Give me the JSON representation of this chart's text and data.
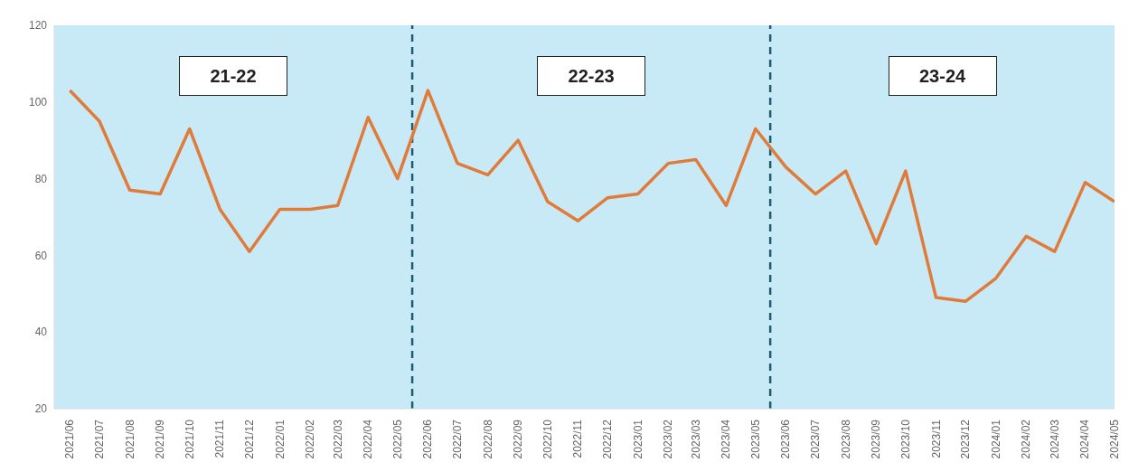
{
  "chart_data": {
    "type": "line",
    "x": [
      "2021-06",
      "2021-07",
      "2021-08",
      "2021-09",
      "2021-10",
      "2021-11",
      "2021-12",
      "2022-01",
      "2022-02",
      "2022-03",
      "2022-04",
      "2022-05",
      "2022-06",
      "2022-07",
      "2022-08",
      "2022-09",
      "2022-10",
      "2022-11",
      "2022-12",
      "2023-01",
      "2023-02",
      "2023-03",
      "2023-04",
      "2023-05",
      "2023-06",
      "2023-07",
      "2023-08",
      "2023-09",
      "2023-10",
      "2023-11",
      "2023-12",
      "2024-01",
      "2024-02",
      "2024-03",
      "2024-04",
      "2024-05"
    ],
    "series": [
      {
        "color": "#e07b39",
        "values": [
          103,
          95,
          77,
          76,
          93,
          72,
          61,
          72,
          72,
          73,
          96,
          80,
          103,
          84,
          81,
          90,
          74,
          69,
          75,
          76,
          84,
          85,
          73,
          93,
          83,
          76,
          82,
          63,
          82,
          49,
          48,
          54,
          65,
          61,
          79,
          74
        ]
      }
    ],
    "xlim": [
      "2021-05-16",
      "2024-05-01"
    ],
    "xticks": [
      {
        "value": "2021-06",
        "label": "2021/06"
      },
      {
        "value": "2021-07",
        "label": "2021/07"
      },
      {
        "value": "2021-08",
        "label": "2021/08"
      },
      {
        "value": "2021-09",
        "label": "2021/09"
      },
      {
        "value": "2021-10",
        "label": "2021/10"
      },
      {
        "value": "2021-11",
        "label": "2021/11"
      },
      {
        "value": "2021-12",
        "label": "2021/12"
      },
      {
        "value": "2022-01",
        "label": "2022/01"
      },
      {
        "value": "2022-02",
        "label": "2022/02"
      },
      {
        "value": "2022-03",
        "label": "2022/03"
      },
      {
        "value": "2022-04",
        "label": "2022/04"
      },
      {
        "value": "2022-05",
        "label": "2022/05"
      },
      {
        "value": "2022-06",
        "label": "2022/06"
      },
      {
        "value": "2022-07",
        "label": "2022/07"
      },
      {
        "value": "2022-08",
        "label": "2022/08"
      },
      {
        "value": "2022-09",
        "label": "2022/09"
      },
      {
        "value": "2022-10",
        "label": "2022/10"
      },
      {
        "value": "2022-11",
        "label": "2022/11"
      },
      {
        "value": "2022-12",
        "label": "2022/12"
      },
      {
        "value": "2023-01",
        "label": "2023/01"
      },
      {
        "value": "2023-02",
        "label": "2023/02"
      },
      {
        "value": "2023-03",
        "label": "2023/03"
      },
      {
        "value": "2023-04",
        "label": "2023/04"
      },
      {
        "value": "2023-05",
        "label": "2023/05"
      },
      {
        "value": "2023-06",
        "label": "2023/06"
      },
      {
        "value": "2023-07",
        "label": "2023/07"
      },
      {
        "value": "2023-08",
        "label": "2023/08"
      },
      {
        "value": "2023-09",
        "label": "2023/09"
      },
      {
        "value": "2023-10",
        "label": "2023/10"
      },
      {
        "value": "2023-11",
        "label": "2023/11"
      },
      {
        "value": "2023-12",
        "label": "2023/12"
      },
      {
        "value": "2024-01",
        "label": "2024/01"
      },
      {
        "value": "2024-02",
        "label": "2024/02"
      },
      {
        "value": "2024-03",
        "label": "2024/03"
      },
      {
        "value": "2024-04",
        "label": "2024/04"
      },
      {
        "value": "2024-05",
        "label": "2024/05"
      }
    ],
    "ylim": [
      20,
      120
    ],
    "yticks": [
      20,
      40,
      60,
      80,
      100,
      120
    ],
    "ref_lines": [
      {
        "axis": "x",
        "value": "2022-05-16",
        "color": "#1f5a73",
        "line_style": "dashed"
      },
      {
        "axis": "x",
        "value": "2023-05-16",
        "color": "#1f5a73",
        "line_style": "dashed"
      }
    ],
    "annotations": [
      "21-22",
      "22-23",
      "23-24"
    ],
    "marker": "none",
    "line_style": "solid",
    "grid": false,
    "legend": false
  }
}
